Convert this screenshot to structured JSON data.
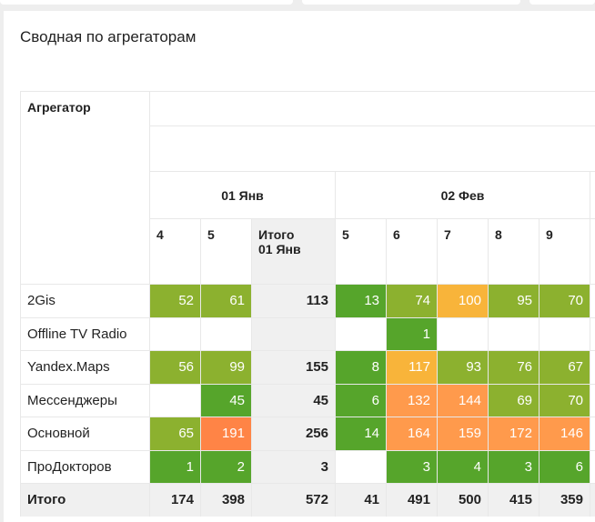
{
  "title": "Сводная по агрегаторам",
  "table": {
    "header": {
      "label": "Агрегатор",
      "groups": [
        {
          "label": "01 Янв",
          "columns": [
            "4",
            "5"
          ],
          "total": "Итого 01 Янв"
        },
        {
          "label": "02 Фев",
          "columns": [
            "5",
            "6",
            "7",
            "8",
            "9"
          ]
        }
      ]
    },
    "rows": [
      {
        "label": "2Gis",
        "values": [
          52,
          61,
          113,
          13,
          74,
          100,
          95,
          70
        ]
      },
      {
        "label": "Offline TV Radio",
        "values": [
          null,
          null,
          null,
          null,
          1,
          null,
          null,
          null
        ]
      },
      {
        "label": "Yandex.Maps",
        "values": [
          56,
          99,
          155,
          8,
          117,
          93,
          76,
          67
        ]
      },
      {
        "label": "Мессенджеры",
        "values": [
          null,
          45,
          45,
          6,
          132,
          144,
          69,
          70
        ]
      },
      {
        "label": "Основной",
        "values": [
          65,
          191,
          256,
          14,
          164,
          159,
          172,
          146
        ]
      },
      {
        "label": "ПроДокторов",
        "values": [
          1,
          2,
          3,
          null,
          3,
          4,
          3,
          6
        ]
      }
    ],
    "total": {
      "label": "Итого",
      "values": [
        174,
        398,
        572,
        41,
        491,
        500,
        415,
        359
      ]
    }
  }
}
